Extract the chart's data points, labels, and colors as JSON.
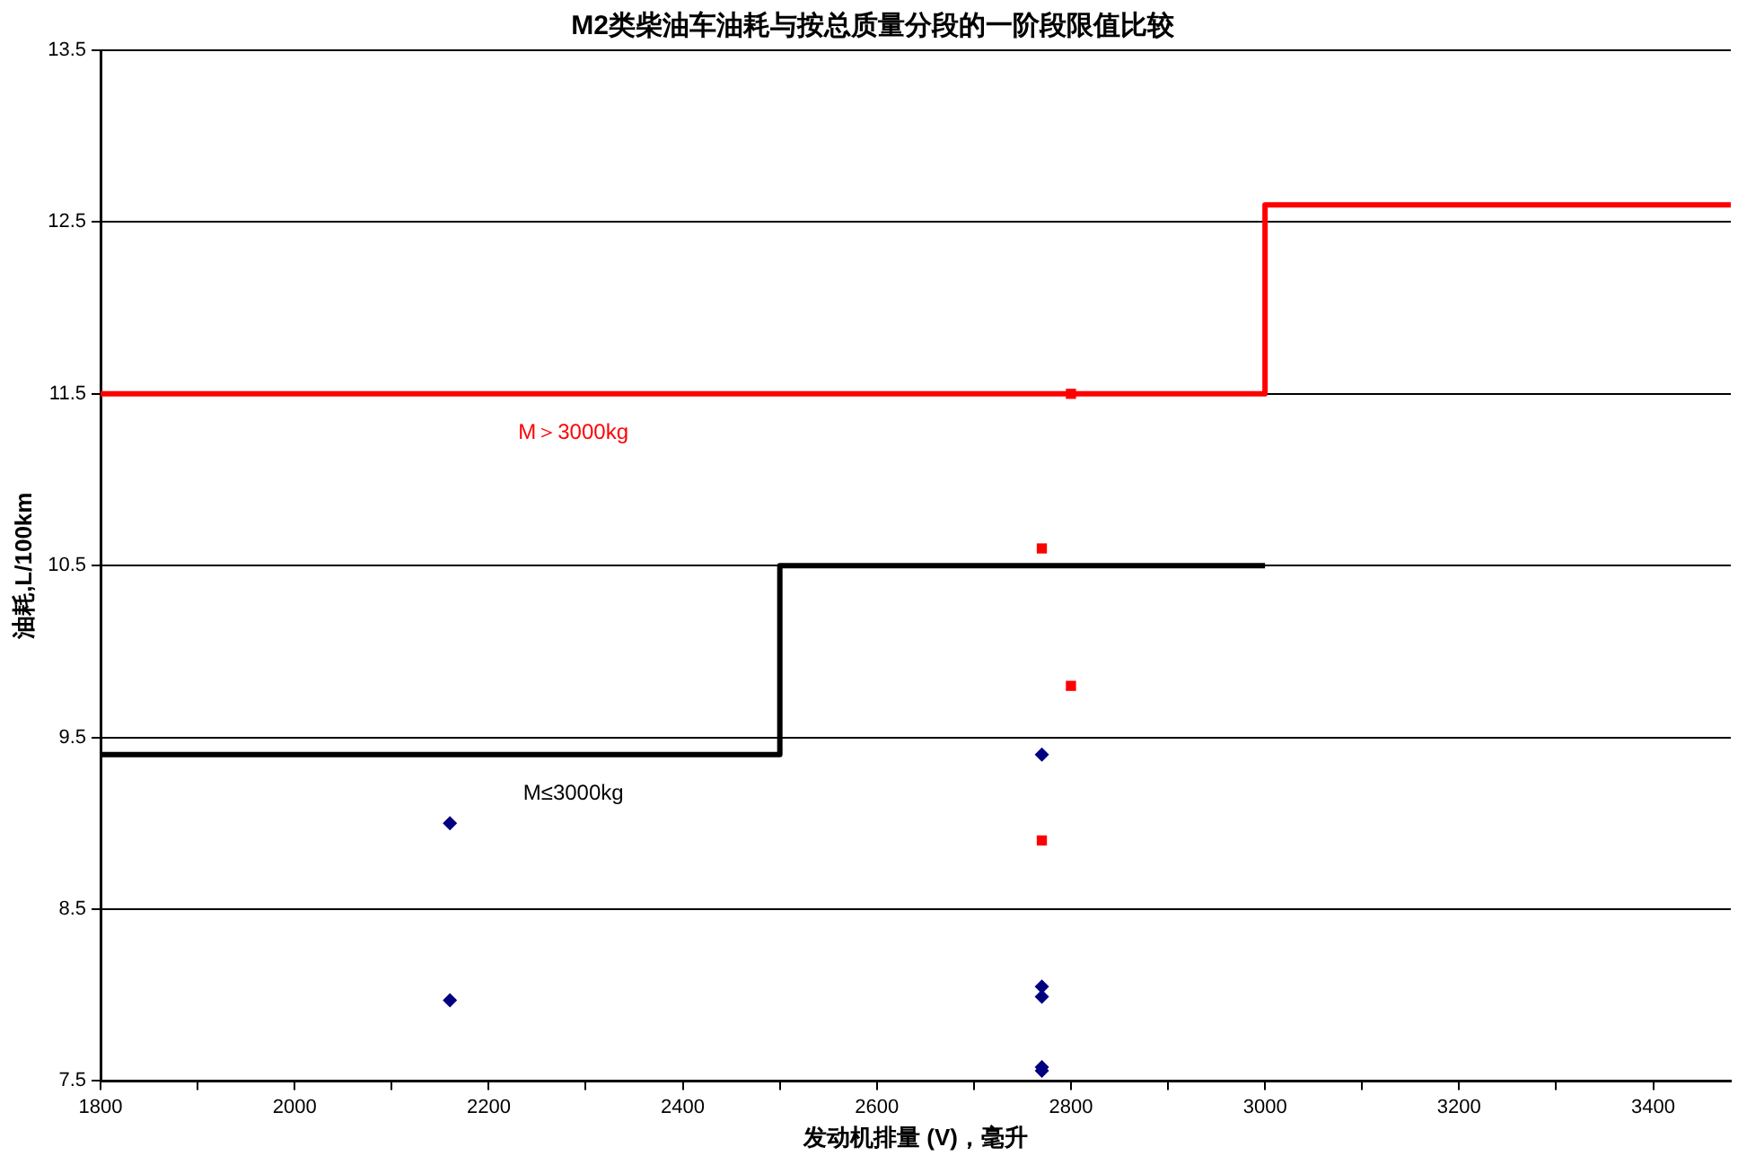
{
  "chart_data": {
    "type": "step",
    "title": "M2类柴油车油耗与按总质量分段的一阶段限值比较",
    "xlabel": "发动机排量 (V)，毫升",
    "ylabel": "油耗,L/100km",
    "xlim": [
      1800,
      3480
    ],
    "xticks": [
      1800,
      {
        "value": 1900,
        "label": null
      },
      2000,
      {
        "value": 2100,
        "label": null
      },
      2200,
      {
        "value": 2300,
        "label": null
      },
      2400,
      {
        "value": 2500,
        "label": null
      },
      2600,
      {
        "value": 2700,
        "label": null
      },
      2800,
      {
        "value": 2900,
        "label": null
      },
      3000,
      {
        "value": 3100,
        "label": null
      },
      3200,
      {
        "value": 3300,
        "label": null
      },
      3400
    ],
    "ylim": [
      7.5,
      13.5
    ],
    "yticks": [
      7.5,
      8.5,
      9.5,
      10.5,
      11.5,
      12.5,
      13.5
    ],
    "grid": "y",
    "legend": false,
    "series": [
      {
        "type": "step",
        "color": "#ff0000",
        "x": [
          1800,
          3000,
          3480
        ],
        "values": [
          11.5,
          12.6,
          12.6
        ]
      },
      {
        "type": "step",
        "color": "#000000",
        "x": [
          1800,
          2500,
          3000
        ],
        "values": [
          9.4,
          10.5,
          10.5
        ]
      },
      {
        "type": "scatter",
        "marker": "diamond",
        "color": "#000080",
        "x": [
          2160,
          2160,
          2770,
          2770,
          2770,
          2770,
          2770
        ],
        "values": [
          9.0,
          7.97,
          9.4,
          8.05,
          7.99,
          7.58,
          7.56
        ]
      },
      {
        "type": "scatter",
        "marker": "square",
        "color": "#ff0000",
        "x": [
          2800,
          2770,
          2800,
          2770
        ],
        "values": [
          11.5,
          10.6,
          9.8,
          8.9
        ]
      }
    ],
    "annotations": [
      "M＞3000kg",
      "M≤3000kg"
    ]
  }
}
